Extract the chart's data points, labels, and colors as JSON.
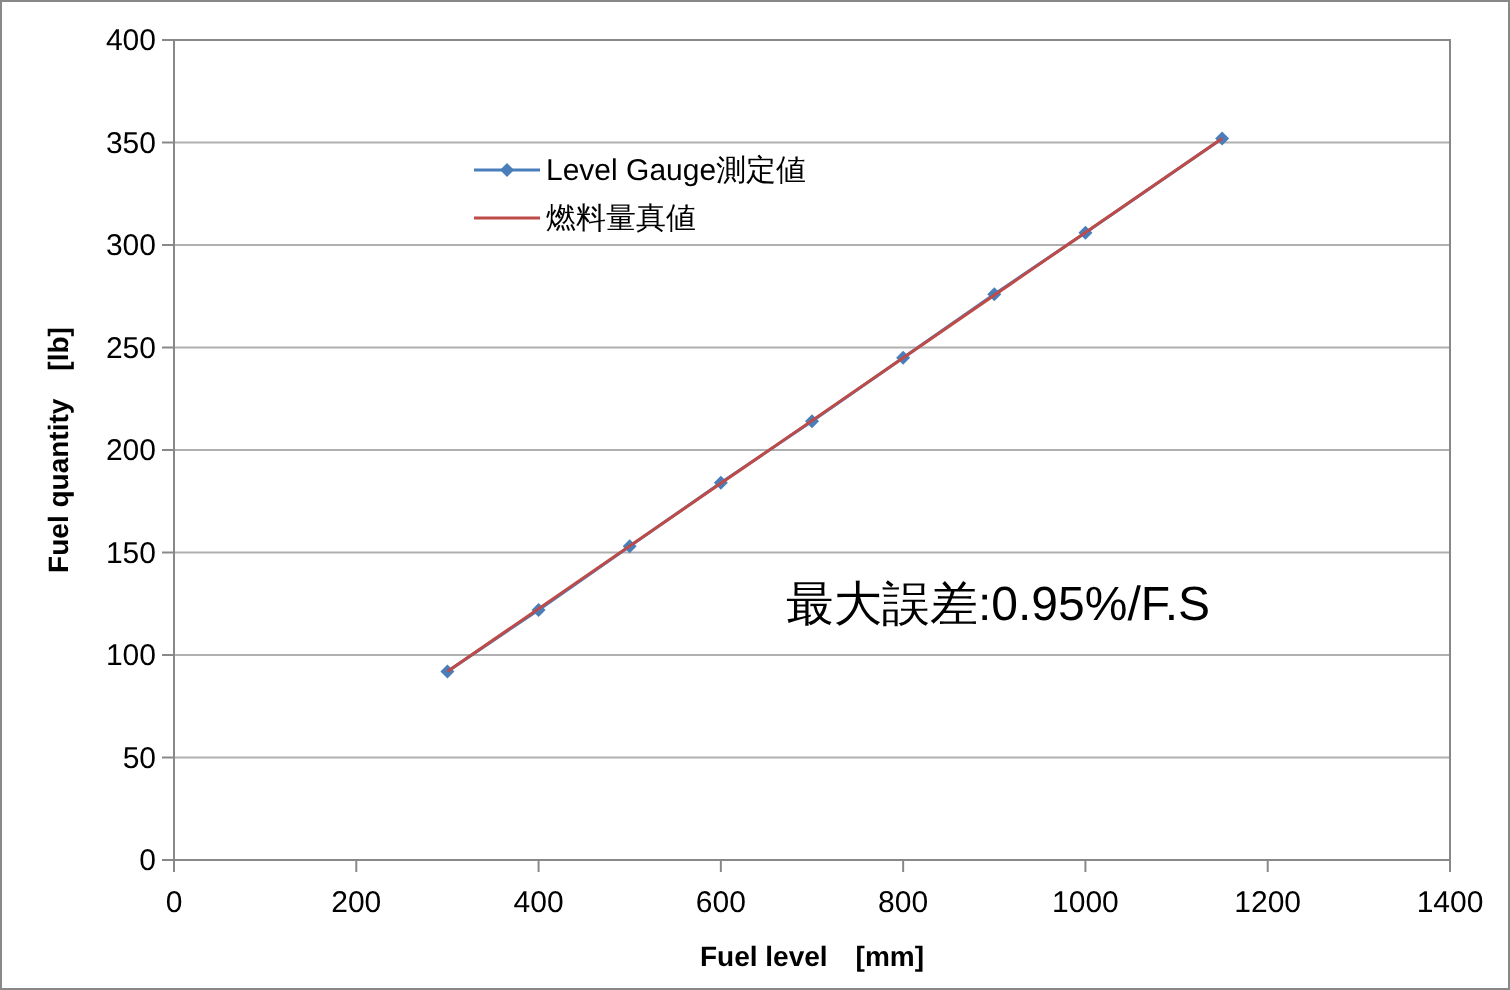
{
  "chart_data": {
    "type": "line",
    "xlabel": "Fuel level　[mm]",
    "ylabel": "Fuel quantity　[lb]",
    "series": [
      {
        "name": "Level Gauge測定値",
        "color": "#4a7ebb",
        "marker": "diamond",
        "x": [
          300,
          400,
          500,
          600,
          700,
          800,
          900,
          1000,
          1150
        ],
        "values": [
          92,
          122,
          153,
          184,
          214,
          245,
          276,
          306,
          352
        ]
      },
      {
        "name": "燃料量真値",
        "color": "#be4b48",
        "marker": "none",
        "x": [
          300,
          1150
        ],
        "values": [
          92,
          352
        ]
      }
    ],
    "xlim": [
      0,
      1400
    ],
    "xticks": [
      0,
      200,
      400,
      600,
      800,
      1000,
      1200,
      1400
    ],
    "ylim": [
      0,
      400
    ],
    "yticks": [
      0,
      50,
      100,
      150,
      200,
      250,
      300,
      350,
      400
    ],
    "grid": "y",
    "legend": "top left",
    "annotations": [
      "最大誤差:0.95%/F.S"
    ]
  }
}
